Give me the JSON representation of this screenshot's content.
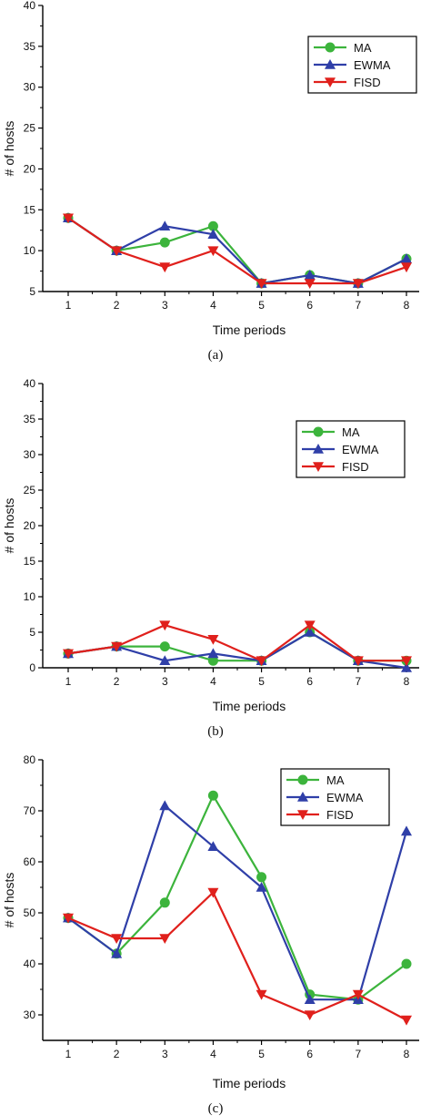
{
  "chart_data": [
    {
      "type": "line",
      "caption": "(a)",
      "xlabel": "Time periods",
      "ylabel": "# of hosts",
      "x": [
        1,
        2,
        3,
        4,
        5,
        6,
        7,
        8
      ],
      "ylim": [
        5,
        40
      ],
      "yticks": [
        5,
        10,
        15,
        20,
        25,
        30,
        35,
        40
      ],
      "legend": "top-right",
      "grid": false,
      "series": [
        {
          "name": "MA",
          "color": "#3cb43c",
          "marker": "circle",
          "values": [
            14,
            10,
            11,
            13,
            6,
            7,
            6,
            9
          ]
        },
        {
          "name": "EWMA",
          "color": "#2f3fa8",
          "marker": "triangle-up",
          "values": [
            14,
            10,
            13,
            12,
            6,
            7,
            6,
            9
          ]
        },
        {
          "name": "FISD",
          "color": "#e0201c",
          "marker": "triangle-down",
          "values": [
            14,
            10,
            8,
            10,
            6,
            6,
            6,
            8
          ]
        }
      ]
    },
    {
      "type": "line",
      "caption": "(b)",
      "xlabel": "Time periods",
      "ylabel": "# of hosts",
      "x": [
        1,
        2,
        3,
        4,
        5,
        6,
        7,
        8
      ],
      "ylim": [
        0,
        40
      ],
      "yticks": [
        0,
        5,
        10,
        15,
        20,
        25,
        30,
        35,
        40
      ],
      "legend": "top-right",
      "grid": false,
      "series": [
        {
          "name": "MA",
          "color": "#3cb43c",
          "marker": "circle",
          "values": [
            2,
            3,
            3,
            1,
            1,
            5,
            1,
            1
          ]
        },
        {
          "name": "EWMA",
          "color": "#2f3fa8",
          "marker": "triangle-up",
          "values": [
            2,
            3,
            1,
            2,
            1,
            5,
            1,
            0
          ]
        },
        {
          "name": "FISD",
          "color": "#e0201c",
          "marker": "triangle-down",
          "values": [
            2,
            3,
            6,
            4,
            1,
            6,
            1,
            1
          ]
        }
      ]
    },
    {
      "type": "line",
      "caption": "(c)",
      "xlabel": "Time periods",
      "ylabel": "# of hosts",
      "x": [
        1,
        2,
        3,
        4,
        5,
        6,
        7,
        8
      ],
      "ylim": [
        25,
        80
      ],
      "yticks": [
        30,
        40,
        50,
        60,
        70,
        80
      ],
      "legend": "top-right",
      "grid": false,
      "series": [
        {
          "name": "MA",
          "color": "#3cb43c",
          "marker": "circle",
          "values": [
            49,
            42,
            52,
            73,
            57,
            34,
            33,
            40
          ]
        },
        {
          "name": "EWMA",
          "color": "#2f3fa8",
          "marker": "triangle-up",
          "values": [
            49,
            42,
            71,
            63,
            55,
            33,
            33,
            66
          ]
        },
        {
          "name": "FISD",
          "color": "#e0201c",
          "marker": "triangle-down",
          "values": [
            49,
            45,
            45,
            54,
            34,
            30,
            34,
            29
          ]
        }
      ]
    }
  ]
}
